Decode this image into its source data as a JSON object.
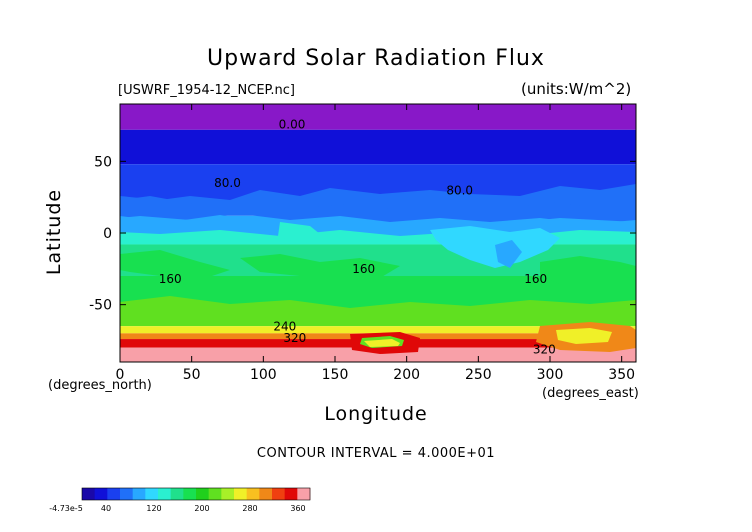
{
  "chart_data": {
    "type": "heatmap",
    "title": "Upward Solar Radiation Flux",
    "file_label": "[USWRF_1954-12_NCEP.nc]",
    "units_label": "(units:W/m^2)",
    "xlabel": "Longitude",
    "ylabel": "Latitude",
    "x_unit_label": "(degrees_north)",
    "x_unit_label_2": "(degrees_east)",
    "xlim": [
      0,
      360
    ],
    "ylim": [
      -90,
      90
    ],
    "x_ticks": [
      0,
      50,
      100,
      150,
      200,
      250,
      300,
      350
    ],
    "y_ticks": [
      50,
      0,
      -50
    ],
    "contour_interval_text": "CONTOUR INTERVAL = 4.000E+01",
    "contour_interval": 40,
    "contour_labels": [
      {
        "text": "0.00",
        "x": 120,
        "y": 73
      },
      {
        "text": "80.0",
        "x": 75,
        "y": 32
      },
      {
        "text": "80.0",
        "x": 237,
        "y": 27
      },
      {
        "text": "160",
        "x": 35,
        "y": -35
      },
      {
        "text": "160",
        "x": 170,
        "y": -28
      },
      {
        "text": "160",
        "x": 290,
        "y": -35
      },
      {
        "text": "240",
        "x": 115,
        "y": -68
      },
      {
        "text": "320",
        "x": 122,
        "y": -76
      },
      {
        "text": "320",
        "x": 296,
        "y": -84
      }
    ],
    "colorbar": {
      "tick_labels": [
        "-4.73e-5",
        "40",
        "120",
        "200",
        "280",
        "360"
      ],
      "colors": [
        "#1a08a8",
        "#1010d8",
        "#1a40f0",
        "#2070f8",
        "#28a8ff",
        "#30d8ff",
        "#2af0d0",
        "#20e08c",
        "#18e050",
        "#20d01c",
        "#60e020",
        "#a8f028",
        "#f0f028",
        "#f8c020",
        "#f08818",
        "#f04010",
        "#e00808",
        "#f8a0a8"
      ]
    },
    "latitude_bands": [
      {
        "lat_from": 90,
        "lat_to": 72,
        "color": "#8818c8"
      },
      {
        "lat_from": 72,
        "lat_to": 48,
        "color": "#1010d8"
      },
      {
        "lat_from": 48,
        "lat_to": 35,
        "color": "#1a40f0"
      },
      {
        "lat_from": 35,
        "lat_to": 12,
        "color": "#2070f8"
      },
      {
        "lat_from": 12,
        "lat_to": 5,
        "color": "#28a8ff"
      },
      {
        "lat_from": 5,
        "lat_to": -8,
        "color": "#2af0d0"
      },
      {
        "lat_from": -8,
        "lat_to": -30,
        "color": "#20e08c"
      },
      {
        "lat_from": -30,
        "lat_to": -55,
        "color": "#18e050"
      },
      {
        "lat_from": -55,
        "lat_to": -65,
        "color": "#60e020"
      },
      {
        "lat_from": -65,
        "lat_to": -70,
        "color": "#f0f028"
      },
      {
        "lat_from": -70,
        "lat_to": -74,
        "color": "#f08818"
      },
      {
        "lat_from": -74,
        "lat_to": -80,
        "color": "#e00808"
      },
      {
        "lat_from": -80,
        "lat_to": -90,
        "color": "#f8a0a8"
      }
    ]
  }
}
